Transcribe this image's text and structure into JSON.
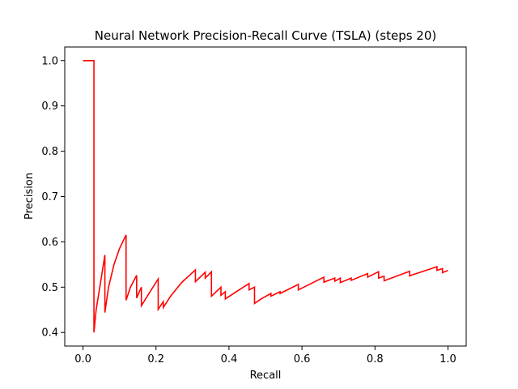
{
  "chart_data": {
    "type": "line",
    "title": "Neural Network Precision-Recall Curve (TSLA) (steps 20)",
    "xlabel": "Recall",
    "ylabel": "Precision",
    "xlim": [
      -0.05,
      1.05
    ],
    "ylim": [
      0.37,
      1.03
    ],
    "xticks": [
      "0.0",
      "0.2",
      "0.4",
      "0.6",
      "0.8",
      "1.0"
    ],
    "xtick_values": [
      0.0,
      0.2,
      0.4,
      0.6,
      0.8,
      1.0
    ],
    "yticks": [
      "0.4",
      "0.5",
      "0.6",
      "0.7",
      "0.8",
      "0.9",
      "1.0"
    ],
    "ytick_values": [
      0.4,
      0.5,
      0.6,
      0.7,
      0.8,
      0.9,
      1.0
    ],
    "grid": false,
    "line_color": "#ff0000",
    "series": [
      {
        "x": [
          0.0,
          0.03,
          0.03,
          0.03,
          0.036,
          0.046,
          0.06,
          0.06,
          0.07,
          0.085,
          0.1,
          0.118,
          0.118,
          0.13,
          0.147,
          0.147,
          0.16,
          0.16,
          0.18,
          0.206,
          0.206,
          0.22,
          0.22,
          0.24,
          0.27,
          0.308,
          0.308,
          0.335,
          0.335,
          0.352,
          0.352,
          0.378,
          0.378,
          0.39,
          0.39,
          0.42,
          0.455,
          0.455,
          0.47,
          0.47,
          0.49,
          0.515,
          0.515,
          0.54,
          0.54,
          0.59,
          0.59,
          0.66,
          0.66,
          0.69,
          0.69,
          0.705,
          0.705,
          0.735,
          0.735,
          0.78,
          0.78,
          0.81,
          0.81,
          0.825,
          0.825,
          0.895,
          0.895,
          0.97,
          0.97,
          0.985,
          0.985,
          1.0
        ],
        "y": [
          1.0,
          1.0,
          0.4,
          0.4,
          0.45,
          0.5,
          0.571,
          0.444,
          0.5,
          0.55,
          0.585,
          0.615,
          0.471,
          0.5,
          0.526,
          0.476,
          0.5,
          0.459,
          0.485,
          0.518,
          0.451,
          0.468,
          0.455,
          0.48,
          0.51,
          0.538,
          0.512,
          0.533,
          0.52,
          0.534,
          0.48,
          0.5,
          0.482,
          0.49,
          0.474,
          0.49,
          0.508,
          0.494,
          0.5,
          0.464,
          0.475,
          0.486,
          0.48,
          0.49,
          0.486,
          0.506,
          0.494,
          0.522,
          0.511,
          0.52,
          0.513,
          0.52,
          0.51,
          0.52,
          0.515,
          0.53,
          0.522,
          0.534,
          0.52,
          0.524,
          0.514,
          0.535,
          0.525,
          0.545,
          0.537,
          0.541,
          0.532,
          0.537
        ]
      }
    ]
  }
}
